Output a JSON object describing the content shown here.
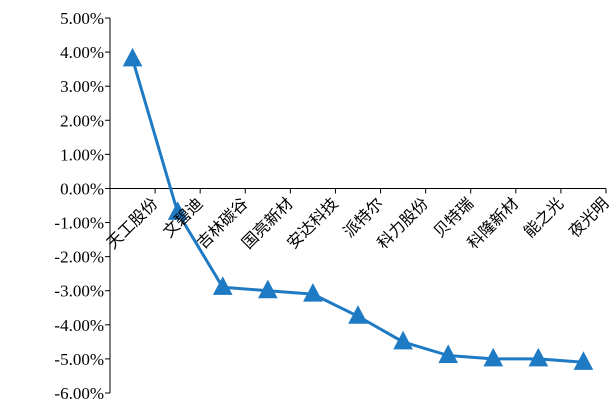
{
  "chart_data": {
    "type": "line",
    "categories": [
      "天工股份",
      "文碧迪",
      "吉林碳谷",
      "国亮新材",
      "安达科技",
      "派特尔",
      "科力股份",
      "贝特瑞",
      "科隆新材",
      "能之光",
      "夜光明"
    ],
    "series": [
      {
        "values": [
          3.8,
          -0.7,
          -2.9,
          -3.0,
          -3.1,
          -3.75,
          -4.5,
          -4.9,
          -5.0,
          -5.0,
          -5.1
        ],
        "color": "#1f7ac4",
        "marker": "triangle"
      }
    ],
    "ylim": [
      -6,
      5
    ],
    "yticks": [
      "5.00%",
      "4.00%",
      "3.00%",
      "2.00%",
      "1.00%",
      "0.00%",
      "-1.00%",
      "-2.00%",
      "-3.00%",
      "-4.00%",
      "-5.00%",
      "-6.00%"
    ],
    "title": "",
    "xlabel": "",
    "ylabel": "",
    "grid": false,
    "legend": "none"
  }
}
